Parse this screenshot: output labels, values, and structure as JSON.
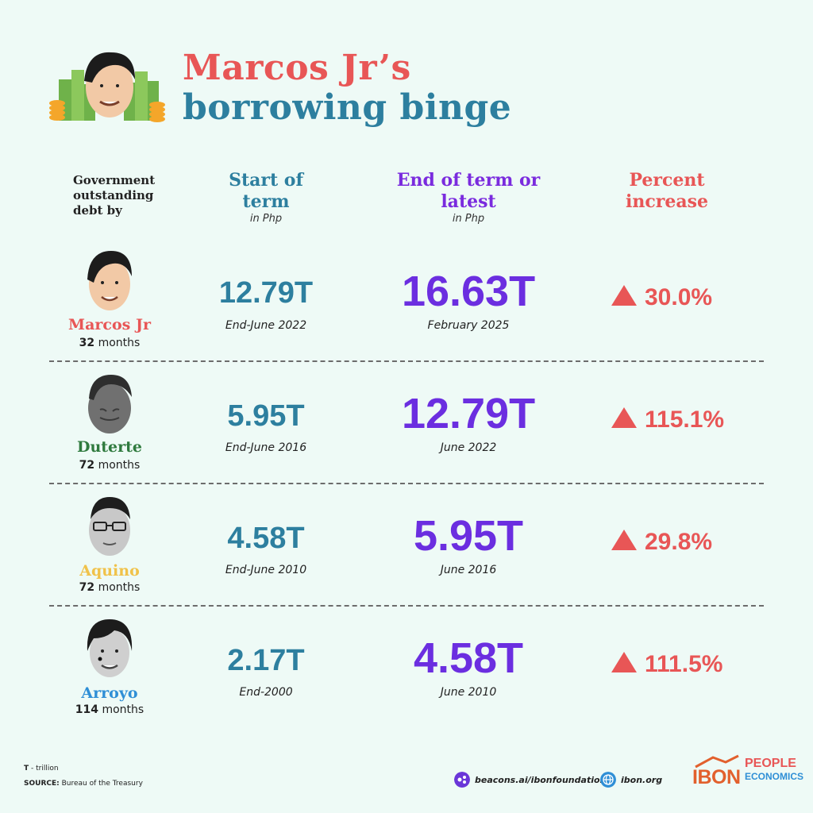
{
  "title": {
    "line1": "Marcos Jr’s",
    "line2": "borrowing binge"
  },
  "headers": {
    "row_label": "Government outstanding debt by",
    "start": "Start of term",
    "start_sub": "in Php",
    "end": "End of term or latest",
    "end_sub": "in Php",
    "pct": "Percent increase"
  },
  "chart_data": {
    "type": "table",
    "title": "Marcos Jr’s borrowing binge",
    "columns": [
      "Government outstanding debt by",
      "Start of term",
      "End of term or latest",
      "Percent increase"
    ],
    "rows": [
      {
        "name": "Marcos Jr",
        "months": "32",
        "start_value": "12.79T",
        "start_date": "End-June 2022",
        "end_value": "16.63T",
        "end_date": "February 2025",
        "pct": "30.0%",
        "name_color": "#e85656"
      },
      {
        "name": "Duterte",
        "months": "72",
        "start_value": "5.95T",
        "start_date": "End-June 2016",
        "end_value": "12.79T",
        "end_date": "June 2022",
        "pct": "115.1%",
        "name_color": "#2f7a3e"
      },
      {
        "name": "Aquino",
        "months": "72",
        "start_value": "4.58T",
        "start_date": "End-June 2010",
        "end_value": "5.95T",
        "end_date": "June 2016",
        "pct": "29.8%",
        "name_color": "#f0c24a"
      },
      {
        "name": "Arroyo",
        "months": "114",
        "start_value": "2.17T",
        "start_date": "End-2000",
        "end_value": "4.58T",
        "end_date": "June 2010",
        "pct": "111.5%",
        "name_color": "#2f8fd6"
      }
    ],
    "months_unit": "months"
  },
  "footer": {
    "legend_key": "T",
    "legend_text": " - trillion",
    "source_label": "SOURCE:",
    "source_text": " Bureau of the Treasury",
    "link1": "beacons.ai/ibonfoundation",
    "link2": "ibon.org",
    "logo1": "IBON",
    "logo2_line1": "PEOPLE",
    "logo2_line2": "ECONOMICS"
  },
  "icons": {
    "row_faces": [
      "marcos-face-icon",
      "duterte-face-icon",
      "aquino-face-icon",
      "arroyo-face-icon"
    ],
    "header_illustration": "money-stack-with-face-icon",
    "link1_icon": "link-icon",
    "link2_icon": "globe-icon",
    "increase_icon": "triangle-up-icon"
  },
  "colors": {
    "background": "#eefaf6",
    "start_blue": "#2d7f9f",
    "end_purple": "#6b2ee0",
    "pct_red": "#e85656"
  }
}
